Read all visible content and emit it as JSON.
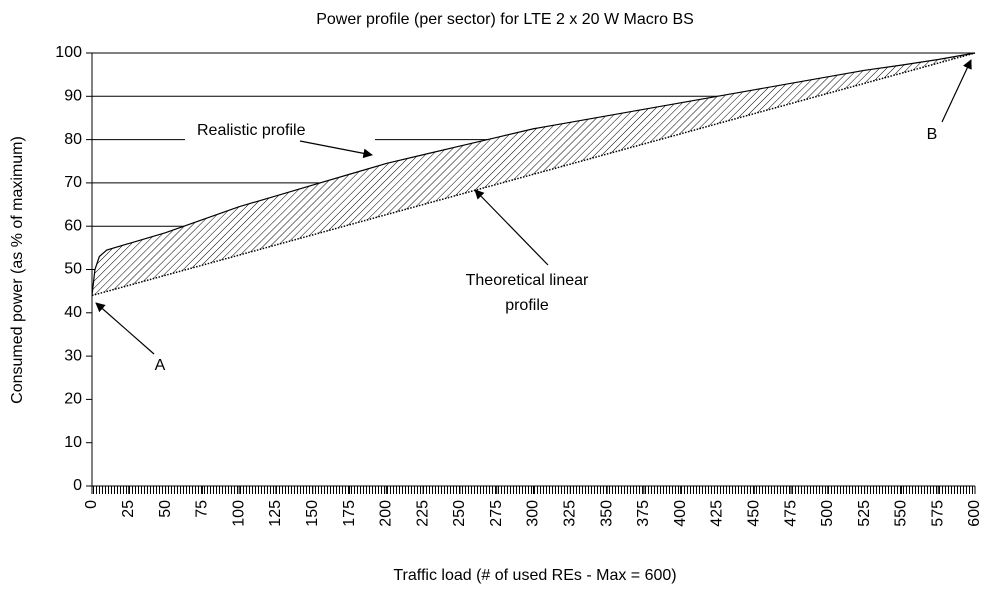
{
  "chart_data": {
    "type": "area-between",
    "title": "Power profile (per sector) for LTE 2 x 20 W Macro BS",
    "x_label": "Traffic load (# of used REs - Max = 600)",
    "y_label": "Consumed power (as % of maximum)",
    "x": [
      0,
      2,
      5,
      10,
      25,
      50,
      75,
      100,
      125,
      150,
      175,
      200,
      225,
      250,
      275,
      300,
      325,
      350,
      375,
      400,
      425,
      450,
      475,
      500,
      525,
      550,
      575,
      600
    ],
    "series": [
      {
        "name": "Realistic profile",
        "color": "#000000",
        "values": [
          44,
          50,
          53,
          54.5,
          56,
          58.5,
          61.5,
          64.5,
          67,
          69.5,
          72,
          74.5,
          76.5,
          78.5,
          80.5,
          82.5,
          84,
          85.5,
          87,
          88.5,
          90,
          91.5,
          93,
          94.5,
          96,
          97.2,
          98.5,
          100
        ]
      },
      {
        "name": "Theoretical linear profile",
        "color": "#000000",
        "values": [
          44,
          44.19,
          44.47,
          44.93,
          46.33,
          48.67,
          51,
          53.33,
          55.67,
          58,
          60.33,
          62.67,
          65,
          67.33,
          69.67,
          72,
          74.33,
          76.67,
          79,
          81.33,
          83.67,
          86,
          88.33,
          90.67,
          93,
          95.33,
          97.67,
          100
        ]
      }
    ],
    "annotations": [
      "Realistic profile",
      "Theoretical linear",
      "profile",
      "A",
      "B"
    ],
    "xlim": [
      0,
      600
    ],
    "xticks": [
      0,
      25,
      50,
      75,
      100,
      125,
      150,
      175,
      200,
      225,
      250,
      275,
      300,
      325,
      350,
      375,
      400,
      425,
      450,
      475,
      500,
      525,
      550,
      575,
      600
    ],
    "ylim": [
      0,
      100
    ],
    "yticks": [
      0,
      10,
      20,
      30,
      40,
      50,
      60,
      70,
      80,
      90,
      100
    ],
    "grid": true
  }
}
